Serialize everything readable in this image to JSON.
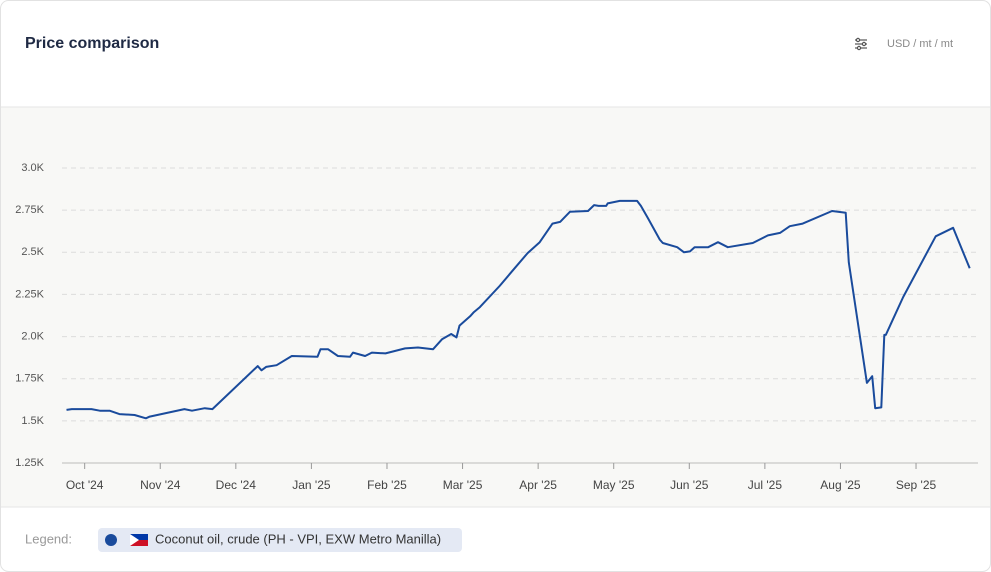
{
  "chart_data": {
    "type": "line",
    "title": "Price comparison",
    "unit_label": "USD / mt / mt",
    "legend_label": "Legend:",
    "x": [
      -0.24,
      -0.17,
      0.09,
      0.2,
      0.33,
      0.46,
      0.66,
      0.81,
      0.86,
      1.32,
      1.42,
      1.59,
      1.69,
      2.29,
      2.34,
      2.4,
      2.54,
      2.74,
      3.08,
      3.12,
      3.22,
      3.35,
      3.51,
      3.55,
      3.71,
      3.8,
      3.98,
      4.24,
      4.41,
      4.61,
      4.73,
      4.85,
      4.92,
      4.96,
      5.1,
      5.15,
      5.23,
      5.49,
      5.65,
      5.86,
      6.02,
      6.19,
      6.29,
      6.42,
      6.66,
      6.74,
      6.8,
      6.9,
      6.92,
      7.08,
      7.31,
      7.36,
      7.45,
      7.61,
      7.65,
      7.84,
      7.93,
      8.01,
      8.07,
      8.25,
      8.38,
      8.51,
      8.84,
      9.04,
      9.2,
      9.33,
      9.5,
      9.89,
      10.07,
      10.11,
      10.35,
      10.42,
      10.46,
      10.54,
      10.58,
      10.6,
      10.83,
      11.26,
      11.49,
      11.71
    ],
    "series": [
      {
        "name": "Coconut oil, crude (PH - VPI, EXW Metro Manilla)",
        "color": "#1a4b9c",
        "values": [
          1565,
          1570,
          1570,
          1560,
          1560,
          1540,
          1535,
          1515,
          1525,
          1570,
          1560,
          1575,
          1570,
          1825,
          1800,
          1820,
          1830,
          1885,
          1880,
          1925,
          1925,
          1885,
          1880,
          1905,
          1885,
          1905,
          1900,
          1930,
          1935,
          1925,
          1985,
          2015,
          1995,
          2065,
          2120,
          2145,
          2175,
          2300,
          2385,
          2495,
          2560,
          2670,
          2680,
          2740,
          2745,
          2780,
          2775,
          2775,
          2790,
          2805,
          2805,
          2775,
          2705,
          2575,
          2555,
          2530,
          2500,
          2505,
          2530,
          2530,
          2560,
          2530,
          2555,
          2600,
          2615,
          2655,
          2670,
          2745,
          2735,
          2440,
          1725,
          1765,
          1575,
          1580,
          2010,
          2010,
          2235,
          2595,
          2645,
          2405
        ]
      }
    ],
    "xlim": [
      -0.3,
      11.82
    ],
    "xticks": [
      {
        "value": 0,
        "label": "Oct '24"
      },
      {
        "value": 1,
        "label": "Nov '24"
      },
      {
        "value": 2,
        "label": "Dec '24"
      },
      {
        "value": 3,
        "label": "Jan '25"
      },
      {
        "value": 4,
        "label": "Feb '25"
      },
      {
        "value": 5,
        "label": "Mar '25"
      },
      {
        "value": 6,
        "label": "Apr '25"
      },
      {
        "value": 7,
        "label": "May '25"
      },
      {
        "value": 8,
        "label": "Jun '25"
      },
      {
        "value": 9,
        "label": "Jul '25"
      },
      {
        "value": 10,
        "label": "Aug '25"
      },
      {
        "value": 11,
        "label": "Sep '25"
      }
    ],
    "ylim": [
      1250,
      3000
    ],
    "yticks": [
      {
        "value": 1250,
        "label": "1.25K"
      },
      {
        "value": 1500,
        "label": "1.5K"
      },
      {
        "value": 1750,
        "label": "1.75K"
      },
      {
        "value": 2000,
        "label": "2.0K"
      },
      {
        "value": 2250,
        "label": "2.25K"
      },
      {
        "value": 2500,
        "label": "2.5K"
      },
      {
        "value": 2750,
        "label": "2.75K"
      },
      {
        "value": 3000,
        "label": "3.0K"
      }
    ],
    "grid": true
  }
}
